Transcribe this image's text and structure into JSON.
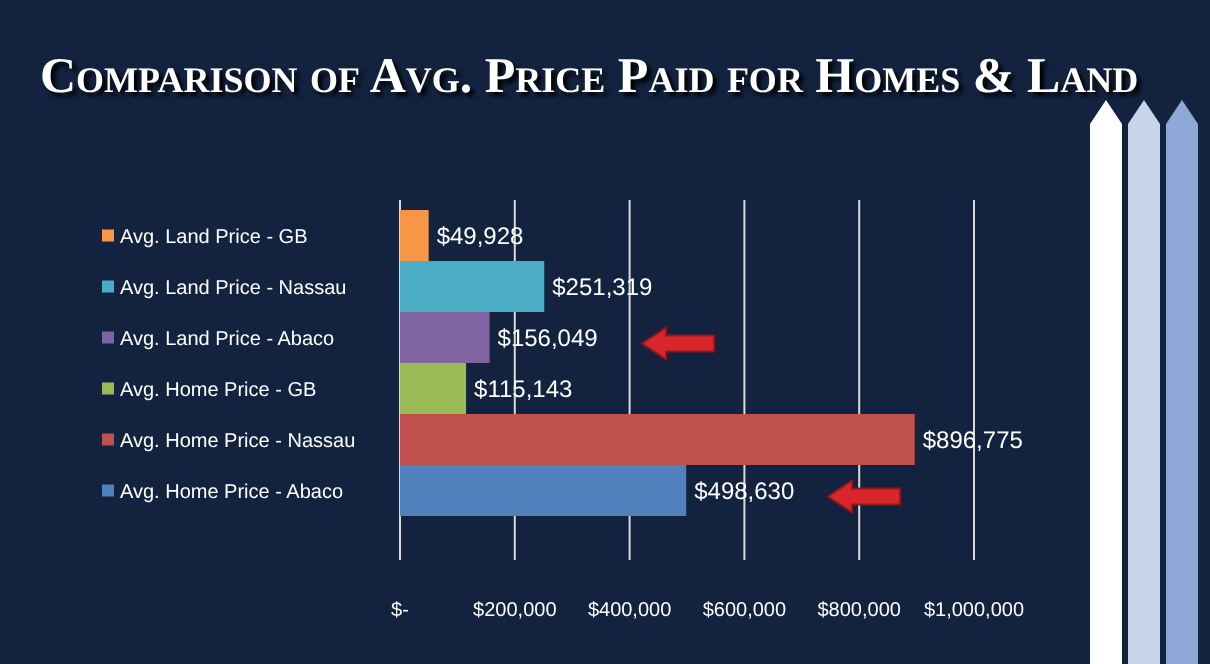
{
  "chart_data": {
    "type": "bar",
    "orientation": "horizontal",
    "title": "Comparison of Avg. Price Paid for Homes & Land",
    "categories": [
      "Avg. Land Price - GB",
      "Avg. Land Price - Nassau",
      "Avg. Land Price - Abaco",
      "Avg. Home Price - GB",
      "Avg. Home Price - Nassau",
      "Avg. Home Price - Abaco"
    ],
    "values": [
      49928,
      251319,
      156049,
      115143,
      896775,
      498630
    ],
    "colors": [
      "#f79646",
      "#4bacc6",
      "#8064a2",
      "#9bbb59",
      "#c0504d",
      "#4f81bd"
    ],
    "value_labels": [
      "$49,928",
      "$251,319",
      "$156,049",
      "$115,143",
      "$896,775",
      "$498,630"
    ],
    "xlim": [
      0,
      1000000
    ],
    "xticks": [
      {
        "value": 0,
        "label": "$-"
      },
      {
        "value": 200000,
        "label": "$200,000"
      },
      {
        "value": 400000,
        "label": "$400,000"
      },
      {
        "value": 600000,
        "label": "$600,000"
      },
      {
        "value": 800000,
        "label": "$800,000"
      },
      {
        "value": 1000000,
        "label": "$1,000,000"
      }
    ],
    "grid": "x"
  }
}
